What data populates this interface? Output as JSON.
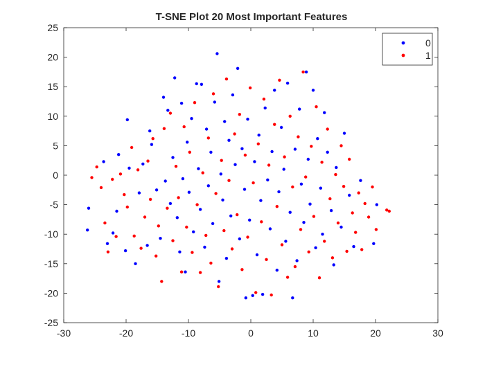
{
  "chart_data": {
    "type": "scatter",
    "title": "T-SNE Plot 20 Most Important Features",
    "xlabel": "",
    "ylabel": "",
    "xlim": [
      -30,
      30
    ],
    "ylim": [
      -25,
      25
    ],
    "xticks": [
      -30,
      -20,
      -10,
      0,
      10,
      20,
      30
    ],
    "yticks": [
      -25,
      -20,
      -15,
      -10,
      -5,
      0,
      5,
      10,
      15,
      20,
      25
    ],
    "grid": false,
    "legend_position": "top-right",
    "series": [
      {
        "name": "0",
        "color": "#0000ff",
        "points": [
          [
            -26.0,
            -5.6
          ],
          [
            -26.2,
            -9.3
          ],
          [
            -23.6,
            2.3
          ],
          [
            -23.0,
            -11.6
          ],
          [
            -22.1,
            -9.8
          ],
          [
            -21.5,
            -6.1
          ],
          [
            -21.2,
            3.5
          ],
          [
            -20.1,
            -12.8
          ],
          [
            -19.8,
            9.4
          ],
          [
            -19.5,
            1.2
          ],
          [
            -18.5,
            -15.0
          ],
          [
            -17.9,
            -3.0
          ],
          [
            -17.3,
            1.9
          ],
          [
            -16.6,
            -11.9
          ],
          [
            -16.2,
            7.5
          ],
          [
            -15.9,
            5.2
          ],
          [
            -15.1,
            -2.5
          ],
          [
            -14.5,
            -10.7
          ],
          [
            -14.0,
            13.2
          ],
          [
            -13.7,
            -1.0
          ],
          [
            -13.3,
            11.0
          ],
          [
            -12.9,
            -4.8
          ],
          [
            -12.5,
            3.0
          ],
          [
            -12.2,
            16.5
          ],
          [
            -11.8,
            -7.2
          ],
          [
            -11.4,
            -13.0
          ],
          [
            -11.1,
            12.2
          ],
          [
            -10.9,
            -0.6
          ],
          [
            -10.5,
            -16.4
          ],
          [
            -10.2,
            5.6
          ],
          [
            -9.9,
            -2.9
          ],
          [
            -9.5,
            9.6
          ],
          [
            -9.2,
            -9.6
          ],
          [
            -8.7,
            15.5
          ],
          [
            -8.4,
            1.1
          ],
          [
            -8.1,
            -5.8
          ],
          [
            -7.9,
            15.4
          ],
          [
            -7.4,
            -12.2
          ],
          [
            -7.1,
            7.8
          ],
          [
            -6.8,
            -1.8
          ],
          [
            -6.4,
            3.9
          ],
          [
            -6.1,
            -8.2
          ],
          [
            -5.8,
            12.4
          ],
          [
            -5.4,
            20.6
          ],
          [
            -5.1,
            -18.0
          ],
          [
            -4.8,
            0.2
          ],
          [
            -4.5,
            -4.2
          ],
          [
            -4.2,
            9.1
          ],
          [
            -3.9,
            -14.1
          ],
          [
            -3.5,
            5.9
          ],
          [
            -3.2,
            -6.9
          ],
          [
            -2.9,
            13.6
          ],
          [
            -2.5,
            1.8
          ],
          [
            -2.1,
            18.1
          ],
          [
            -1.8,
            -10.8
          ],
          [
            -1.4,
            4.5
          ],
          [
            -1.0,
            -2.4
          ],
          [
            -0.8,
            -20.8
          ],
          [
            -0.5,
            9.5
          ],
          [
            -0.2,
            -7.6
          ],
          [
            0.3,
            -20.4
          ],
          [
            0.6,
            2.3
          ],
          [
            1.0,
            -13.5
          ],
          [
            1.3,
            6.8
          ],
          [
            1.6,
            -4.3
          ],
          [
            1.9,
            -20.2
          ],
          [
            2.3,
            11.4
          ],
          [
            2.7,
            -0.8
          ],
          [
            3.1,
            -9.1
          ],
          [
            3.4,
            4.0
          ],
          [
            3.8,
            14.4
          ],
          [
            4.2,
            -16.1
          ],
          [
            4.5,
            -2.8
          ],
          [
            4.9,
            8.1
          ],
          [
            5.3,
            1.0
          ],
          [
            5.6,
            -11.2
          ],
          [
            5.9,
            15.6
          ],
          [
            6.3,
            -6.3
          ],
          [
            6.7,
            -20.8
          ],
          [
            7.1,
            4.4
          ],
          [
            7.4,
            -14.5
          ],
          [
            7.8,
            11.2
          ],
          [
            8.1,
            -1.5
          ],
          [
            8.5,
            -8.0
          ],
          [
            8.9,
            17.5
          ],
          [
            9.2,
            2.7
          ],
          [
            9.5,
            -4.9
          ],
          [
            10.0,
            14.4
          ],
          [
            10.4,
            -12.3
          ],
          [
            10.7,
            6.2
          ],
          [
            11.2,
            -2.2
          ],
          [
            11.5,
            -10.0
          ],
          [
            11.8,
            10.6
          ],
          [
            12.3,
            3.9
          ],
          [
            12.9,
            -6.0
          ],
          [
            13.3,
            -15.2
          ],
          [
            13.7,
            1.3
          ],
          [
            14.5,
            -8.8
          ],
          [
            15.0,
            7.1
          ],
          [
            15.8,
            -3.4
          ],
          [
            16.5,
            -12.1
          ],
          [
            17.6,
            -0.9
          ],
          [
            19.7,
            -11.6
          ],
          [
            20.2,
            -5.0
          ]
        ]
      },
      {
        "name": "1",
        "color": "#ff0000",
        "points": [
          [
            -25.5,
            -0.4
          ],
          [
            -24.7,
            1.4
          ],
          [
            -24.0,
            -2.1
          ],
          [
            -23.4,
            -8.1
          ],
          [
            -22.9,
            -13.0
          ],
          [
            -22.2,
            -0.7
          ],
          [
            -21.6,
            -10.4
          ],
          [
            -20.9,
            0.2
          ],
          [
            -20.3,
            -3.3
          ],
          [
            -19.8,
            -5.4
          ],
          [
            -19.1,
            4.7
          ],
          [
            -18.7,
            -10.3
          ],
          [
            -18.1,
            0.9
          ],
          [
            -17.6,
            -12.4
          ],
          [
            -17.0,
            -7.1
          ],
          [
            -16.5,
            2.4
          ],
          [
            -16.1,
            -4.1
          ],
          [
            -15.7,
            6.2
          ],
          [
            -15.2,
            -13.7
          ],
          [
            -14.8,
            -8.6
          ],
          [
            -14.3,
            -18.0
          ],
          [
            -13.9,
            7.9
          ],
          [
            -13.4,
            -5.6
          ],
          [
            -12.9,
            10.5
          ],
          [
            -12.5,
            -11.1
          ],
          [
            -12.0,
            1.5
          ],
          [
            -11.6,
            -3.8
          ],
          [
            -11.1,
            -16.4
          ],
          [
            -10.7,
            8.2
          ],
          [
            -10.3,
            -8.8
          ],
          [
            -9.8,
            3.9
          ],
          [
            -9.4,
            -13.1
          ],
          [
            -9.0,
            12.3
          ],
          [
            -8.6,
            -5.0
          ],
          [
            -8.1,
            -16.5
          ],
          [
            -7.7,
            0.4
          ],
          [
            -7.2,
            -10.2
          ],
          [
            -6.8,
            6.3
          ],
          [
            -6.4,
            -14.9
          ],
          [
            -6.0,
            13.8
          ],
          [
            -5.6,
            -3.1
          ],
          [
            -5.2,
            -18.9
          ],
          [
            -4.7,
            2.5
          ],
          [
            -4.3,
            -9.4
          ],
          [
            -3.9,
            16.3
          ],
          [
            -3.5,
            -0.9
          ],
          [
            -3.0,
            -12.5
          ],
          [
            -2.6,
            7.0
          ],
          [
            -2.2,
            -6.7
          ],
          [
            -1.8,
            10.3
          ],
          [
            -1.4,
            -16.0
          ],
          [
            -0.9,
            3.4
          ],
          [
            -0.5,
            -10.5
          ],
          [
            -0.1,
            14.8
          ],
          [
            0.4,
            -1.3
          ],
          [
            0.8,
            -19.9
          ],
          [
            1.2,
            5.3
          ],
          [
            1.7,
            -7.9
          ],
          [
            2.1,
            12.9
          ],
          [
            2.5,
            -14.3
          ],
          [
            2.9,
            1.7
          ],
          [
            3.3,
            -20.3
          ],
          [
            3.8,
            8.6
          ],
          [
            4.2,
            -5.3
          ],
          [
            4.6,
            16.1
          ],
          [
            5.0,
            -11.8
          ],
          [
            5.4,
            3.1
          ],
          [
            5.9,
            -17.3
          ],
          [
            6.3,
            10.0
          ],
          [
            6.7,
            -2.0
          ],
          [
            7.1,
            -15.5
          ],
          [
            7.6,
            6.5
          ],
          [
            8.0,
            -9.2
          ],
          [
            8.4,
            17.5
          ],
          [
            8.8,
            -0.3
          ],
          [
            9.3,
            -13.0
          ],
          [
            9.7,
            4.9
          ],
          [
            10.1,
            -7.0
          ],
          [
            10.5,
            11.6
          ],
          [
            11.0,
            -17.4
          ],
          [
            11.4,
            2.2
          ],
          [
            11.8,
            -11.2
          ],
          [
            12.3,
            7.8
          ],
          [
            12.7,
            -4.0
          ],
          [
            13.1,
            -14.0
          ],
          [
            13.6,
            0.1
          ],
          [
            14.0,
            -8.1
          ],
          [
            14.5,
            5.0
          ],
          [
            14.9,
            -1.9
          ],
          [
            15.4,
            -12.9
          ],
          [
            15.8,
            2.7
          ],
          [
            16.3,
            -6.4
          ],
          [
            16.8,
            -9.7
          ],
          [
            17.3,
            -3.0
          ],
          [
            17.8,
            -12.6
          ],
          [
            18.3,
            -4.8
          ],
          [
            18.9,
            -7.1
          ],
          [
            19.5,
            -2.0
          ],
          [
            20.1,
            -9.2
          ],
          [
            21.8,
            -5.9
          ],
          [
            22.2,
            -6.1
          ]
        ]
      }
    ]
  }
}
